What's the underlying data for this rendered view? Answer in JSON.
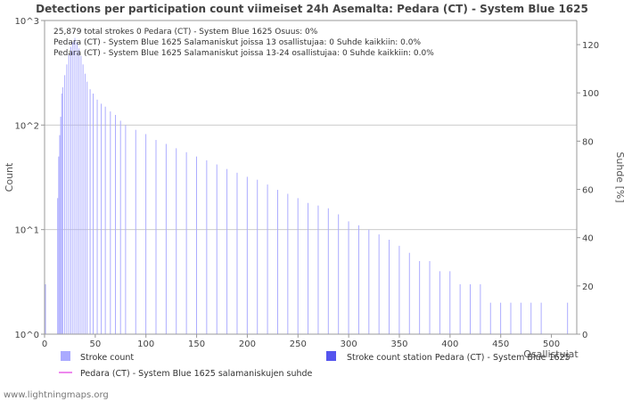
{
  "chart_data": {
    "type": "bar",
    "title": "Detections per participation count viimeiset 24h Asemalta: Pedara (CT) - System Blue 1625",
    "xlabel": "Osallistujat",
    "ylabel_left": "Count",
    "ylabel_right": "Suhde [%]",
    "yscale_left": "log",
    "ylim_left": [
      1,
      1000
    ],
    "ylim_right": [
      0,
      130
    ],
    "xlim": [
      0,
      525
    ],
    "y_ticks_left": [
      "10^0",
      "10^1",
      "10^2",
      "10^3"
    ],
    "y_ticks_right": [
      "0",
      "20",
      "40",
      "60",
      "80",
      "100",
      "120"
    ],
    "x_ticks": [
      "0",
      "50",
      "100",
      "150",
      "200",
      "250",
      "300",
      "350",
      "400",
      "450",
      "500"
    ],
    "info_lines": [
      "25,879 total strokes      0 Pedara (CT) - System Blue 1625      Osuus: 0%",
      "Pedara (CT) - System Blue 1625 Salamaniskut joissa 13 osallistujaa: 0      Suhde kaikkiin: 0.0%",
      "Pedara (CT) - System Blue 1625 Salamaniskut joissa 13-24 osallistujaa: 0      Suhde kaikkiin: 0.0%"
    ],
    "series": [
      {
        "name": "Stroke count",
        "color": "#aaaaff",
        "points": [
          [
            1,
            3
          ],
          [
            13,
            20
          ],
          [
            14,
            50
          ],
          [
            15,
            80
          ],
          [
            16,
            120
          ],
          [
            17,
            200
          ],
          [
            18,
            230
          ],
          [
            20,
            300
          ],
          [
            22,
            380
          ],
          [
            24,
            470
          ],
          [
            26,
            560
          ],
          [
            28,
            620
          ],
          [
            30,
            680
          ],
          [
            32,
            620
          ],
          [
            34,
            540
          ],
          [
            36,
            460
          ],
          [
            38,
            380
          ],
          [
            40,
            310
          ],
          [
            42,
            260
          ],
          [
            45,
            220
          ],
          [
            48,
            200
          ],
          [
            52,
            175
          ],
          [
            56,
            160
          ],
          [
            60,
            150
          ],
          [
            65,
            135
          ],
          [
            70,
            125
          ],
          [
            75,
            110
          ],
          [
            80,
            100
          ],
          [
            90,
            90
          ],
          [
            100,
            82
          ],
          [
            110,
            72
          ],
          [
            120,
            66
          ],
          [
            130,
            60
          ],
          [
            140,
            55
          ],
          [
            150,
            50
          ],
          [
            160,
            46
          ],
          [
            170,
            42
          ],
          [
            180,
            38
          ],
          [
            190,
            35
          ],
          [
            200,
            32
          ],
          [
            210,
            30
          ],
          [
            220,
            27
          ],
          [
            230,
            24
          ],
          [
            240,
            22
          ],
          [
            250,
            20
          ],
          [
            260,
            18
          ],
          [
            270,
            17
          ],
          [
            280,
            16
          ],
          [
            290,
            14
          ],
          [
            300,
            12
          ],
          [
            310,
            11
          ],
          [
            320,
            10
          ],
          [
            330,
            9
          ],
          [
            340,
            8
          ],
          [
            350,
            7
          ],
          [
            360,
            6
          ],
          [
            370,
            5
          ],
          [
            380,
            5
          ],
          [
            390,
            4
          ],
          [
            400,
            4
          ],
          [
            410,
            3
          ],
          [
            420,
            3
          ],
          [
            430,
            3
          ],
          [
            440,
            2
          ],
          [
            450,
            2
          ],
          [
            460,
            2
          ],
          [
            470,
            2
          ],
          [
            480,
            2
          ],
          [
            490,
            2
          ],
          [
            500,
            1
          ],
          [
            510,
            1
          ],
          [
            516,
            2
          ]
        ]
      },
      {
        "name": "Stroke count station Pedara (CT) - System Blue 1625",
        "color": "#5555ee",
        "points": []
      },
      {
        "name": "Pedara (CT) - System Blue 1625 salamaniskujen suhde",
        "color": "#ee88ee",
        "points": []
      }
    ],
    "legend": [
      "Stroke count",
      "Stroke count station Pedara (CT) - System Blue 1625",
      "Pedara (CT) - System Blue 1625 salamaniskujen suhde"
    ]
  },
  "footer": "www.lightningmaps.org"
}
